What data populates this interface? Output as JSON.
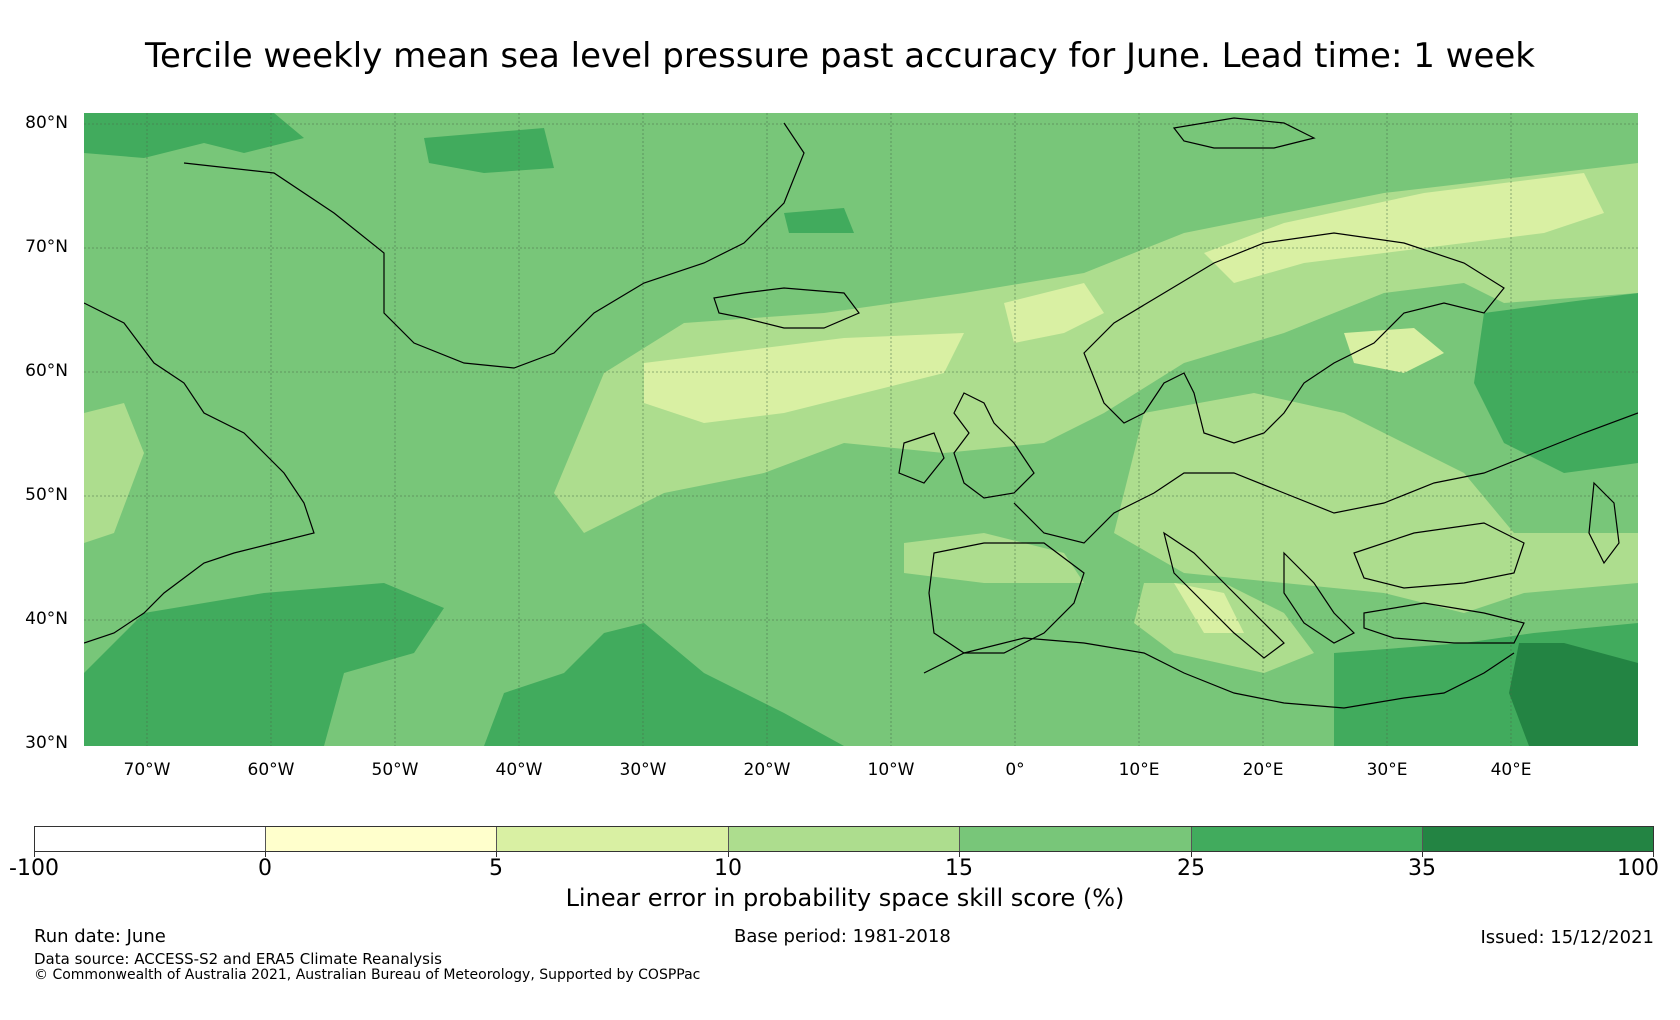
{
  "title": "Tercile weekly mean sea level pressure past accuracy for June. Lead time: 1 week",
  "map": {
    "latitude_labels": [
      "80°N",
      "70°N",
      "60°N",
      "50°N",
      "40°N",
      "30°N"
    ],
    "longitude_labels": [
      "70°W",
      "60°W",
      "50°W",
      "40°W",
      "30°W",
      "20°W",
      "10°W",
      "0°",
      "10°E",
      "20°E",
      "30°E",
      "40°E"
    ],
    "colors": {
      "ocean_base": "#78c679",
      "band_light": "#addd8e",
      "band_pale": "#d9f0a3",
      "high": "#41ab5d",
      "very_high": "#238443",
      "coast": "#000000",
      "grid": "#4a6e4a"
    }
  },
  "colorbar": {
    "label": "Linear error in probability space skill score (%)",
    "tick_labels": [
      "-100",
      "0",
      "5",
      "10",
      "15",
      "25",
      "35",
      "100"
    ],
    "bins": [
      {
        "range": "-100 to 0",
        "color": "#ffffff"
      },
      {
        "range": "0 to 5",
        "color": "#ffffcc"
      },
      {
        "range": "5 to 10",
        "color": "#d9f0a3"
      },
      {
        "range": "10 to 15",
        "color": "#addd8e"
      },
      {
        "range": "15 to 25",
        "color": "#78c679"
      },
      {
        "range": "25 to 35",
        "color": "#41ab5d"
      },
      {
        "range": "35 to 100",
        "color": "#238443"
      }
    ]
  },
  "footer": {
    "run_date": "Run date: June",
    "base_period": "Base period: 1981-2018",
    "issued": "Issued: 15/12/2021",
    "data_source": "Data source: ACCESS-S2 and ERA5 Climate Reanalysis",
    "copyright": "© Commonwealth of Australia 2021, Australian Bureau of Meteorology, Supported by COSPPac"
  }
}
